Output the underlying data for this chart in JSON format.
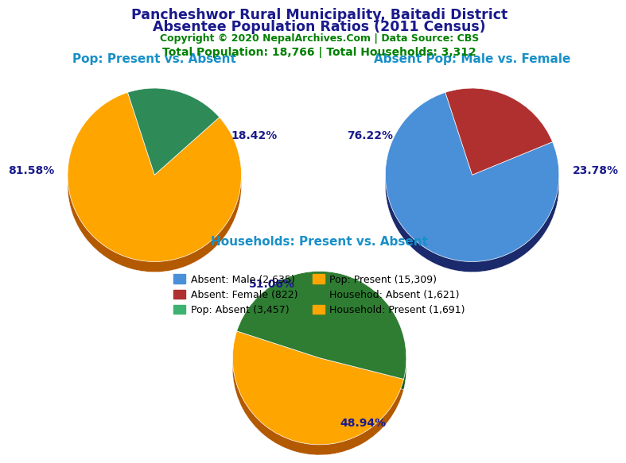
{
  "title_line1": "Pancheshwor Rural Municipality, Baitadi District",
  "title_line2": "Absentee Population Ratios (2011 Census)",
  "copyright_text": "Copyright © 2020 NepalArchives.Com | Data Source: CBS",
  "stats_text": "Total Population: 18,766 | Total Households: 3,312",
  "title_color": "#1a1a8c",
  "copyright_color": "#008000",
  "stats_color": "#008000",
  "subtitle_color": "#1890c8",
  "pie1_title": "Pop: Present vs. Absent",
  "pie1_values": [
    81.58,
    18.42
  ],
  "pie1_colors": [
    "#FFA500",
    "#2E8B57"
  ],
  "pie1_dark_colors": [
    "#b35900",
    "#1a5c30"
  ],
  "pie1_labels": [
    "81.58%",
    "18.42%"
  ],
  "pie1_startangle": 108,
  "pie2_title": "Absent Pop: Male vs. Female",
  "pie2_values": [
    76.22,
    23.78
  ],
  "pie2_colors": [
    "#4a90d9",
    "#b03030"
  ],
  "pie2_dark_colors": [
    "#1a2a6c",
    "#7a1010"
  ],
  "pie2_labels": [
    "76.22%",
    "23.78%"
  ],
  "pie2_startangle": 108,
  "pie3_title": "Households: Present vs. Absent",
  "pie3_values": [
    51.06,
    48.94
  ],
  "pie3_colors": [
    "#FFA500",
    "#2E7D32"
  ],
  "pie3_dark_colors": [
    "#b35900",
    "#1b5e20"
  ],
  "pie3_labels": [
    "51.06%",
    "48.94%"
  ],
  "pie3_startangle": 162,
  "legend_items": [
    {
      "label": "Absent: Male (2,635)",
      "color": "#4a90d9"
    },
    {
      "label": "Absent: Female (822)",
      "color": "#b03030"
    },
    {
      "label": "Pop: Absent (3,457)",
      "color": "#3cb371"
    },
    {
      "label": "Pop: Present (15,309)",
      "color": "#FFA500"
    },
    {
      "label": "Househod: Absent (1,621)",
      "color": "#2E7D32"
    },
    {
      "label": "Household: Present (1,691)",
      "color": "#FFA500"
    }
  ],
  "background_color": "#ffffff",
  "label_color": "#1a1a8c"
}
